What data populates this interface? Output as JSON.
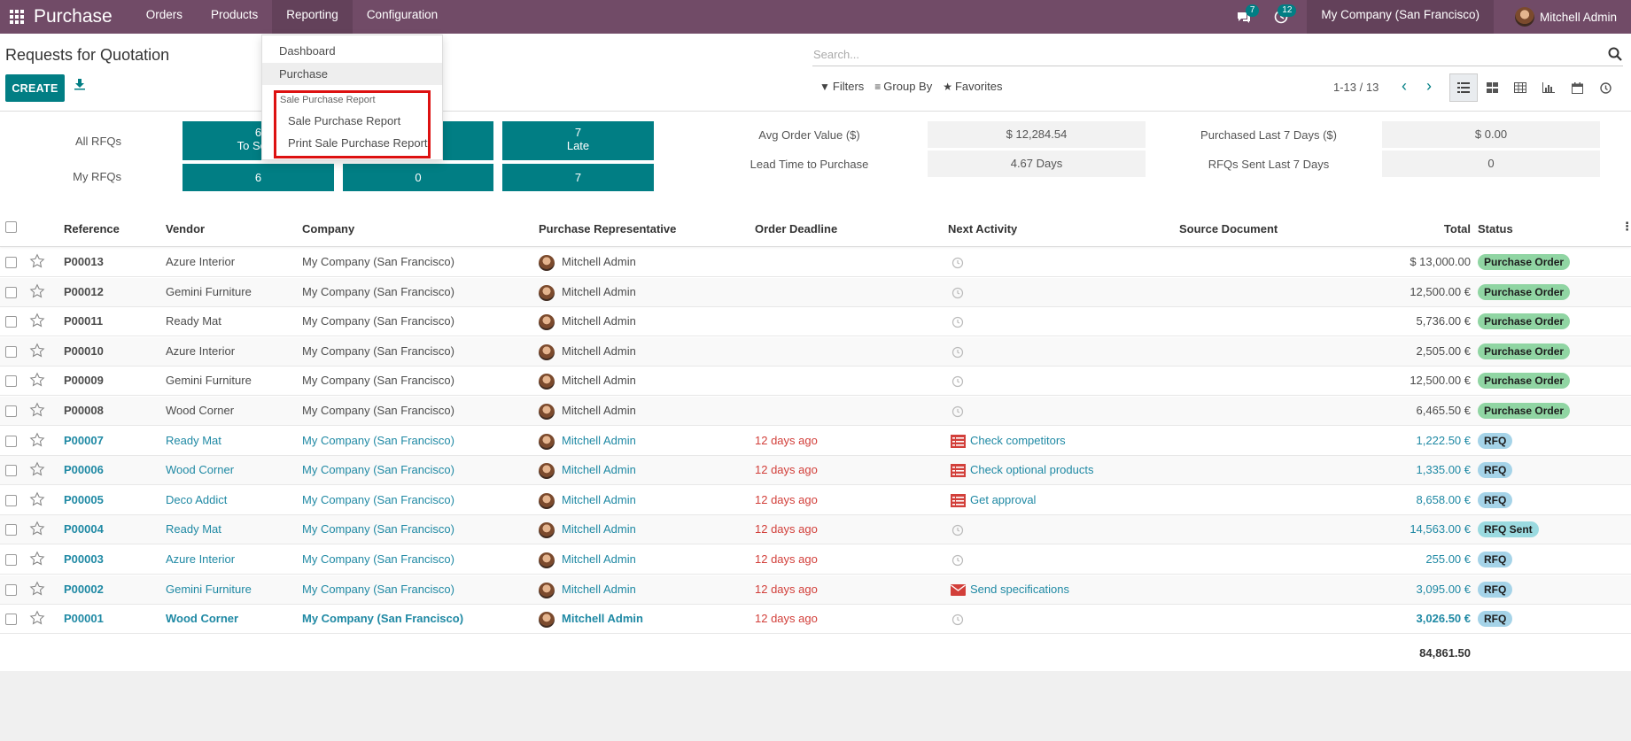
{
  "navbar": {
    "app_name": "Purchase",
    "menu": [
      "Orders",
      "Products",
      "Reporting",
      "Configuration"
    ],
    "chat_count": "7",
    "activity_count": "12",
    "company": "My Company (San Francisco)",
    "user": "Mitchell Admin"
  },
  "dropdown": {
    "items": [
      "Dashboard",
      "Purchase"
    ],
    "section_header": "Sale Purchase Report",
    "section_items": [
      "Sale Purchase Report",
      "Print Sale Purchase Report"
    ]
  },
  "control_panel": {
    "title": "Requests for Quotation",
    "create_label": "CREATE",
    "search_placeholder": "Search...",
    "filters": "Filters",
    "group_by": "Group By",
    "favorites": "Favorites",
    "pager": "1-13 / 13"
  },
  "dashboard": {
    "row_labels": [
      "All RFQs",
      "My RFQs"
    ],
    "tiles_all": [
      {
        "value": "6",
        "label": "To Send"
      },
      {
        "value": "",
        "label": ""
      },
      {
        "value": "7",
        "label": "Late"
      }
    ],
    "tiles_my": [
      "6",
      "0",
      "7"
    ],
    "stats_left": [
      {
        "label": "Avg Order Value ($)",
        "value": "$ 12,284.54"
      },
      {
        "label": "Lead Time to Purchase",
        "value": "4.67  Days"
      }
    ],
    "stats_right": [
      {
        "label": "Purchased Last 7 Days ($)",
        "value": "$ 0.00"
      },
      {
        "label": "RFQs Sent Last 7 Days",
        "value": "0"
      }
    ]
  },
  "table": {
    "columns": [
      "Reference",
      "Vendor",
      "Company",
      "Purchase Representative",
      "Order Deadline",
      "Next Activity",
      "Source Document",
      "Total",
      "Status"
    ],
    "rows": [
      {
        "ref": "P00013",
        "vendor": "Azure Interior",
        "company": "My Company (San Francisco)",
        "rep": "Mitchell Admin",
        "deadline": "",
        "activity": "",
        "activity_icon": "clock-icon",
        "total": "$ 13,000.00",
        "status": "Purchase Order",
        "kind": "po"
      },
      {
        "ref": "P00012",
        "vendor": "Gemini Furniture",
        "company": "My Company (San Francisco)",
        "rep": "Mitchell Admin",
        "deadline": "",
        "activity": "",
        "activity_icon": "clock-icon",
        "total": "12,500.00 €",
        "status": "Purchase Order",
        "kind": "po"
      },
      {
        "ref": "P00011",
        "vendor": "Ready Mat",
        "company": "My Company (San Francisco)",
        "rep": "Mitchell Admin",
        "deadline": "",
        "activity": "",
        "activity_icon": "clock-icon",
        "total": "5,736.00 €",
        "status": "Purchase Order",
        "kind": "po"
      },
      {
        "ref": "P00010",
        "vendor": "Azure Interior",
        "company": "My Company (San Francisco)",
        "rep": "Mitchell Admin",
        "deadline": "",
        "activity": "",
        "activity_icon": "clock-icon",
        "total": "2,505.00 €",
        "status": "Purchase Order",
        "kind": "po"
      },
      {
        "ref": "P00009",
        "vendor": "Gemini Furniture",
        "company": "My Company (San Francisco)",
        "rep": "Mitchell Admin",
        "deadline": "",
        "activity": "",
        "activity_icon": "clock-icon",
        "total": "12,500.00 €",
        "status": "Purchase Order",
        "kind": "po"
      },
      {
        "ref": "P00008",
        "vendor": "Wood Corner",
        "company": "My Company (San Francisco)",
        "rep": "Mitchell Admin",
        "deadline": "",
        "activity": "",
        "activity_icon": "clock-icon",
        "total": "6,465.50 €",
        "status": "Purchase Order",
        "kind": "po"
      },
      {
        "ref": "P00007",
        "vendor": "Ready Mat",
        "company": "My Company (San Francisco)",
        "rep": "Mitchell Admin",
        "deadline": "12 days ago",
        "activity": "Check competitors",
        "activity_icon": "task-list-icon",
        "total": "1,222.50 €",
        "status": "RFQ",
        "kind": "rfq"
      },
      {
        "ref": "P00006",
        "vendor": "Wood Corner",
        "company": "My Company (San Francisco)",
        "rep": "Mitchell Admin",
        "deadline": "12 days ago",
        "activity": "Check optional products",
        "activity_icon": "task-list-icon",
        "total": "1,335.00 €",
        "status": "RFQ",
        "kind": "rfq"
      },
      {
        "ref": "P00005",
        "vendor": "Deco Addict",
        "company": "My Company (San Francisco)",
        "rep": "Mitchell Admin",
        "deadline": "12 days ago",
        "activity": "Get approval",
        "activity_icon": "task-list-icon",
        "total": "8,658.00 €",
        "status": "RFQ",
        "kind": "rfq"
      },
      {
        "ref": "P00004",
        "vendor": "Ready Mat",
        "company": "My Company (San Francisco)",
        "rep": "Mitchell Admin",
        "deadline": "12 days ago",
        "activity": "",
        "activity_icon": "clock-icon",
        "total": "14,563.00 €",
        "status": "RFQ Sent",
        "kind": "sent"
      },
      {
        "ref": "P00003",
        "vendor": "Azure Interior",
        "company": "My Company (San Francisco)",
        "rep": "Mitchell Admin",
        "deadline": "12 days ago",
        "activity": "",
        "activity_icon": "clock-icon",
        "total": "255.00 €",
        "status": "RFQ",
        "kind": "rfq"
      },
      {
        "ref": "P00002",
        "vendor": "Gemini Furniture",
        "company": "My Company (San Francisco)",
        "rep": "Mitchell Admin",
        "deadline": "12 days ago",
        "activity": "Send specifications",
        "activity_icon": "envelope-icon",
        "total": "3,095.00 €",
        "status": "RFQ",
        "kind": "rfq"
      },
      {
        "ref": "P00001",
        "vendor": "Wood Corner",
        "company": "My Company (San Francisco)",
        "rep": "Mitchell Admin",
        "deadline": "12 days ago",
        "activity": "",
        "activity_icon": "clock-icon",
        "total": "3,026.50 €",
        "status": "RFQ",
        "kind": "rfq",
        "bold": true
      }
    ],
    "grand_total": "84,861.50"
  },
  "colors": {
    "navbar": "#714B67",
    "primary": "#017e84",
    "link": "#1f89a4",
    "overdue": "#d23f3a",
    "status_po": "#90d5a3",
    "status_rfq": "#a5d3e8"
  }
}
